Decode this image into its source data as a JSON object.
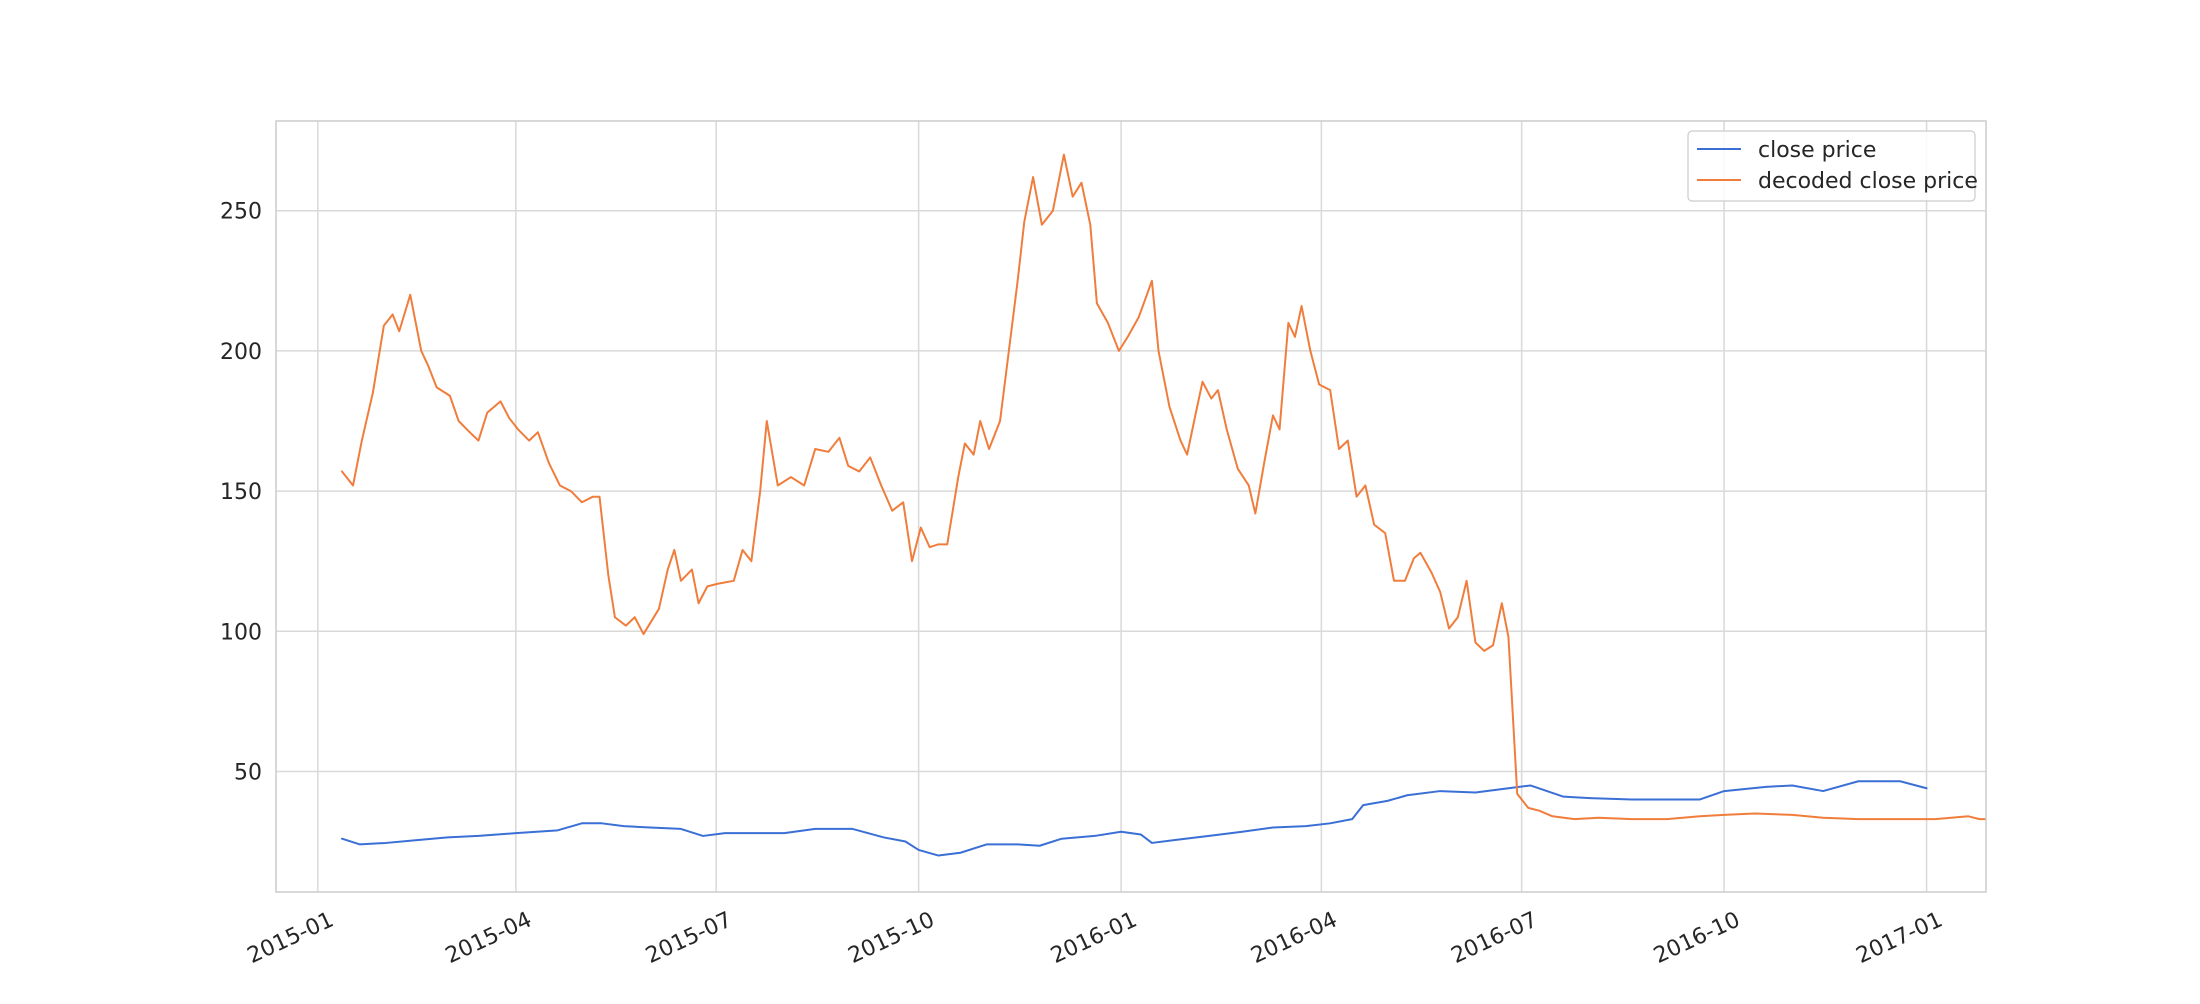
{
  "chart_data": {
    "type": "line",
    "title": "",
    "xlabel": "",
    "ylabel": "",
    "grid": true,
    "legend_position": "top-right",
    "x_range": [
      "2014-12-13",
      "2017-01-28"
    ],
    "ylim": [
      7,
      282
    ],
    "x_ticks": [
      "2015-01",
      "2015-04",
      "2015-07",
      "2015-10",
      "2016-01",
      "2016-04",
      "2016-07",
      "2016-10",
      "2017-01"
    ],
    "y_ticks": [
      50,
      100,
      150,
      200,
      250
    ],
    "series": [
      {
        "name": "close price",
        "color": "#3a6fd6",
        "points": [
          [
            "2015-01-12",
            26
          ],
          [
            "2015-01-20",
            24
          ],
          [
            "2015-02-01",
            24.5
          ],
          [
            "2015-02-15",
            25.5
          ],
          [
            "2015-03-01",
            26.5
          ],
          [
            "2015-03-15",
            27
          ],
          [
            "2015-04-01",
            28
          ],
          [
            "2015-04-20",
            29
          ],
          [
            "2015-05-01",
            31.5
          ],
          [
            "2015-05-10",
            31.5
          ],
          [
            "2015-05-20",
            30.5
          ],
          [
            "2015-06-01",
            30
          ],
          [
            "2015-06-15",
            29.5
          ],
          [
            "2015-06-25",
            27
          ],
          [
            "2015-07-05",
            28
          ],
          [
            "2015-07-20",
            28
          ],
          [
            "2015-08-01",
            28
          ],
          [
            "2015-08-15",
            29.5
          ],
          [
            "2015-09-01",
            29.5
          ],
          [
            "2015-09-15",
            26.5
          ],
          [
            "2015-09-25",
            25
          ],
          [
            "2015-10-01",
            22
          ],
          [
            "2015-10-10",
            20
          ],
          [
            "2015-10-20",
            21
          ],
          [
            "2015-11-01",
            24
          ],
          [
            "2015-11-15",
            24
          ],
          [
            "2015-11-25",
            23.5
          ],
          [
            "2015-12-05",
            26
          ],
          [
            "2015-12-20",
            27
          ],
          [
            "2016-01-01",
            28.5
          ],
          [
            "2016-01-10",
            27.5
          ],
          [
            "2016-01-15",
            24.5
          ],
          [
            "2016-01-25",
            25.5
          ],
          [
            "2016-02-10",
            27
          ],
          [
            "2016-02-25",
            28.5
          ],
          [
            "2016-03-10",
            30
          ],
          [
            "2016-03-25",
            30.5
          ],
          [
            "2016-04-05",
            31.5
          ],
          [
            "2016-04-15",
            33
          ],
          [
            "2016-04-20",
            38
          ],
          [
            "2016-05-01",
            39.5
          ],
          [
            "2016-05-10",
            41.5
          ],
          [
            "2016-05-25",
            43
          ],
          [
            "2016-06-10",
            42.5
          ],
          [
            "2016-06-25",
            44
          ],
          [
            "2016-07-05",
            45
          ],
          [
            "2016-07-20",
            41
          ],
          [
            "2016-08-01",
            40.5
          ],
          [
            "2016-08-20",
            40
          ],
          [
            "2016-09-01",
            40
          ],
          [
            "2016-09-20",
            40
          ],
          [
            "2016-10-01",
            43
          ],
          [
            "2016-10-20",
            44.5
          ],
          [
            "2016-11-01",
            45
          ],
          [
            "2016-11-15",
            43
          ],
          [
            "2016-12-01",
            46.5
          ],
          [
            "2016-12-20",
            46.5
          ],
          [
            "2017-01-01",
            44
          ]
        ]
      },
      {
        "name": "decoded close price",
        "color": "#f07d3c",
        "points": [
          [
            "2015-01-12",
            157
          ],
          [
            "2015-01-17",
            152
          ],
          [
            "2015-01-21",
            168
          ],
          [
            "2015-01-26",
            185
          ],
          [
            "2015-01-31",
            209
          ],
          [
            "2015-02-04",
            213
          ],
          [
            "2015-02-07",
            207
          ],
          [
            "2015-02-12",
            220
          ],
          [
            "2015-02-17",
            200
          ],
          [
            "2015-02-20",
            195
          ],
          [
            "2015-02-24",
            187
          ],
          [
            "2015-03-02",
            184
          ],
          [
            "2015-03-06",
            175
          ],
          [
            "2015-03-11",
            171
          ],
          [
            "2015-03-15",
            168
          ],
          [
            "2015-03-19",
            178
          ],
          [
            "2015-03-25",
            182
          ],
          [
            "2015-03-29",
            176
          ],
          [
            "2015-04-02",
            172
          ],
          [
            "2015-04-07",
            168
          ],
          [
            "2015-04-11",
            171
          ],
          [
            "2015-04-16",
            160
          ],
          [
            "2015-04-21",
            152
          ],
          [
            "2015-04-26",
            150
          ],
          [
            "2015-05-01",
            146
          ],
          [
            "2015-05-06",
            148
          ],
          [
            "2015-05-09",
            148
          ],
          [
            "2015-05-13",
            120
          ],
          [
            "2015-05-16",
            105
          ],
          [
            "2015-05-21",
            102
          ],
          [
            "2015-05-25",
            105
          ],
          [
            "2015-05-29",
            99
          ],
          [
            "2015-06-05",
            108
          ],
          [
            "2015-06-09",
            122
          ],
          [
            "2015-06-12",
            129
          ],
          [
            "2015-06-15",
            118
          ],
          [
            "2015-06-20",
            122
          ],
          [
            "2015-06-23",
            110
          ],
          [
            "2015-06-27",
            116
          ],
          [
            "2015-07-02",
            117
          ],
          [
            "2015-07-09",
            118
          ],
          [
            "2015-07-13",
            129
          ],
          [
            "2015-07-17",
            125
          ],
          [
            "2015-07-21",
            150
          ],
          [
            "2015-07-24",
            175
          ],
          [
            "2015-07-29",
            152
          ],
          [
            "2015-08-04",
            155
          ],
          [
            "2015-08-10",
            152
          ],
          [
            "2015-08-15",
            165
          ],
          [
            "2015-08-21",
            164
          ],
          [
            "2015-08-26",
            169
          ],
          [
            "2015-08-30",
            159
          ],
          [
            "2015-09-04",
            157
          ],
          [
            "2015-09-09",
            162
          ],
          [
            "2015-09-14",
            152
          ],
          [
            "2015-09-19",
            143
          ],
          [
            "2015-09-24",
            146
          ],
          [
            "2015-09-28",
            125
          ],
          [
            "2015-10-02",
            137
          ],
          [
            "2015-10-06",
            130
          ],
          [
            "2015-10-10",
            131
          ],
          [
            "2015-10-14",
            131
          ],
          [
            "2015-10-19",
            155
          ],
          [
            "2015-10-22",
            167
          ],
          [
            "2015-10-26",
            163
          ],
          [
            "2015-10-29",
            175
          ],
          [
            "2015-11-02",
            165
          ],
          [
            "2015-11-07",
            175
          ],
          [
            "2015-11-11",
            200
          ],
          [
            "2015-11-15",
            225
          ],
          [
            "2015-11-18",
            246
          ],
          [
            "2015-11-22",
            262
          ],
          [
            "2015-11-26",
            245
          ],
          [
            "2015-12-01",
            250
          ],
          [
            "2015-12-06",
            270
          ],
          [
            "2015-12-10",
            255
          ],
          [
            "2015-12-14",
            260
          ],
          [
            "2015-12-18",
            245
          ],
          [
            "2015-12-21",
            217
          ],
          [
            "2015-12-26",
            210
          ],
          [
            "2015-12-31",
            200
          ],
          [
            "2016-01-04",
            205
          ],
          [
            "2016-01-09",
            212
          ],
          [
            "2016-01-15",
            225
          ],
          [
            "2016-01-18",
            200
          ],
          [
            "2016-01-23",
            180
          ],
          [
            "2016-01-28",
            168
          ],
          [
            "2016-01-31",
            163
          ],
          [
            "2016-02-04",
            178
          ],
          [
            "2016-02-07",
            189
          ],
          [
            "2016-02-11",
            183
          ],
          [
            "2016-02-14",
            186
          ],
          [
            "2016-02-18",
            172
          ],
          [
            "2016-02-23",
            158
          ],
          [
            "2016-02-28",
            152
          ],
          [
            "2016-03-02",
            142
          ],
          [
            "2016-03-06",
            160
          ],
          [
            "2016-03-10",
            177
          ],
          [
            "2016-03-13",
            172
          ],
          [
            "2016-03-17",
            210
          ],
          [
            "2016-03-20",
            205
          ],
          [
            "2016-03-23",
            216
          ],
          [
            "2016-03-27",
            200
          ],
          [
            "2016-03-31",
            188
          ],
          [
            "2016-04-05",
            186
          ],
          [
            "2016-04-09",
            165
          ],
          [
            "2016-04-13",
            168
          ],
          [
            "2016-04-17",
            148
          ],
          [
            "2016-04-21",
            152
          ],
          [
            "2016-04-25",
            138
          ],
          [
            "2016-04-30",
            135
          ],
          [
            "2016-05-04",
            118
          ],
          [
            "2016-05-09",
            118
          ],
          [
            "2016-05-13",
            126
          ],
          [
            "2016-05-16",
            128
          ],
          [
            "2016-05-21",
            121
          ],
          [
            "2016-05-25",
            114
          ],
          [
            "2016-05-29",
            101
          ],
          [
            "2016-06-02",
            105
          ],
          [
            "2016-06-06",
            118
          ],
          [
            "2016-06-10",
            96
          ],
          [
            "2016-06-14",
            93
          ],
          [
            "2016-06-18",
            95
          ],
          [
            "2016-06-22",
            110
          ],
          [
            "2016-06-25",
            98
          ],
          [
            "2016-06-29",
            42
          ],
          [
            "2016-07-04",
            37
          ],
          [
            "2016-07-09",
            36
          ],
          [
            "2016-07-15",
            34
          ],
          [
            "2016-07-25",
            33
          ],
          [
            "2016-08-05",
            33.5
          ],
          [
            "2016-08-20",
            33
          ],
          [
            "2016-09-05",
            33
          ],
          [
            "2016-09-20",
            34
          ],
          [
            "2016-10-01",
            34.5
          ],
          [
            "2016-10-15",
            35
          ],
          [
            "2016-11-01",
            34.5
          ],
          [
            "2016-11-15",
            33.5
          ],
          [
            "2016-12-01",
            33
          ],
          [
            "2016-12-20",
            33
          ],
          [
            "2017-01-05",
            33
          ],
          [
            "2017-01-20",
            34
          ],
          [
            "2017-01-25",
            33
          ],
          [
            "2017-02-15",
            33
          ],
          [
            "2017-03-01",
            33
          ]
        ]
      }
    ]
  }
}
